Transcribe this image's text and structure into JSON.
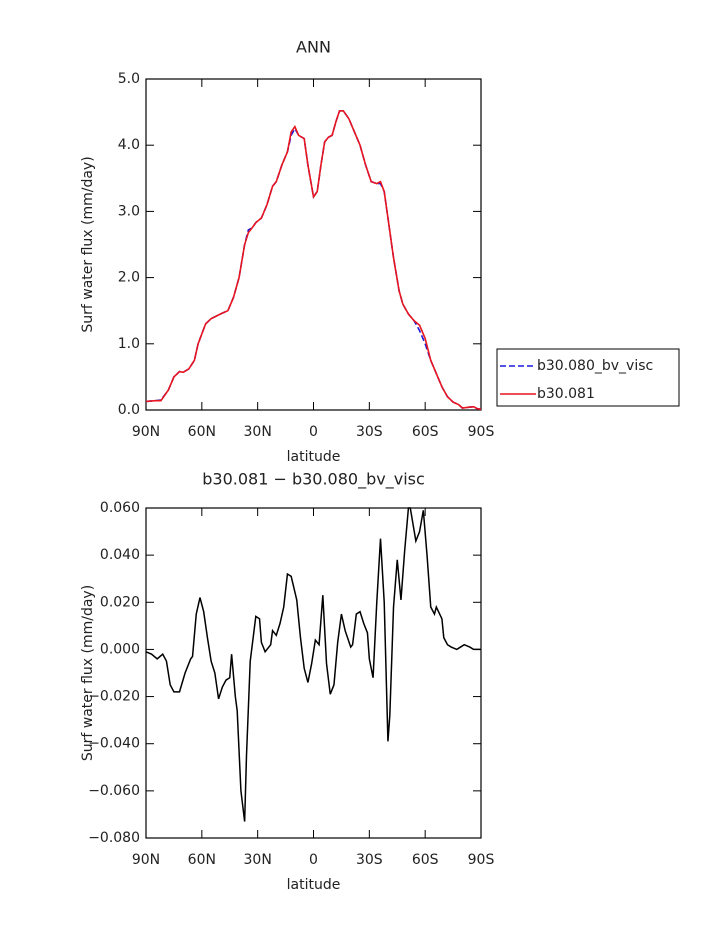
{
  "chart_data": [
    {
      "type": "line",
      "title": "ANN",
      "xlabel": "latitude",
      "ylabel": "Surf water flux (mm/day)",
      "x": [
        90,
        85,
        82,
        78,
        75,
        72,
        70,
        67,
        64,
        62,
        58,
        55,
        50,
        46,
        43,
        40,
        37,
        35,
        33,
        31,
        28,
        25,
        22,
        20,
        17,
        14,
        12,
        10,
        8,
        5,
        3,
        0,
        -2,
        -4,
        -6,
        -8,
        -10,
        -12,
        -14,
        -16,
        -19,
        -22,
        -25,
        -28,
        -31,
        -34,
        -36,
        -38,
        -40,
        -43,
        -46,
        -48,
        -51,
        -54,
        -57,
        -60,
        -63,
        -66,
        -69,
        -72,
        -75,
        -78,
        -80,
        -83,
        -86,
        -88,
        -90
      ],
      "series": [
        {
          "name": "b30.080_bv_visc",
          "color": "#1a1adb",
          "dash": true,
          "values": [
            0.13,
            0.14,
            0.15,
            0.3,
            0.5,
            0.58,
            0.57,
            0.62,
            0.75,
            1.0,
            1.3,
            1.38,
            1.45,
            1.5,
            1.7,
            2.0,
            2.5,
            2.72,
            2.75,
            2.83,
            2.9,
            3.1,
            3.38,
            3.45,
            3.7,
            3.9,
            4.15,
            4.25,
            4.15,
            4.1,
            3.7,
            3.22,
            3.3,
            3.7,
            4.05,
            4.12,
            4.15,
            4.35,
            4.52,
            4.52,
            4.4,
            4.2,
            4.0,
            3.7,
            3.45,
            3.42,
            3.42,
            3.3,
            2.9,
            2.3,
            1.8,
            1.6,
            1.45,
            1.35,
            1.2,
            1.0,
            0.75,
            0.55,
            0.35,
            0.2,
            0.12,
            0.08,
            0.03,
            0.04,
            0.05,
            0.02,
            0.01
          ]
        },
        {
          "name": "b30.081",
          "color": "#e8141e",
          "dash": false,
          "values": [
            0.13,
            0.14,
            0.14,
            0.3,
            0.5,
            0.58,
            0.57,
            0.62,
            0.75,
            1.0,
            1.3,
            1.38,
            1.45,
            1.5,
            1.7,
            2.0,
            2.5,
            2.68,
            2.75,
            2.83,
            2.9,
            3.1,
            3.38,
            3.45,
            3.7,
            3.9,
            4.2,
            4.28,
            4.15,
            4.1,
            3.7,
            3.22,
            3.3,
            3.7,
            4.05,
            4.12,
            4.15,
            4.35,
            4.52,
            4.52,
            4.4,
            4.2,
            4.0,
            3.7,
            3.45,
            3.42,
            3.45,
            3.3,
            2.9,
            2.3,
            1.8,
            1.6,
            1.45,
            1.35,
            1.28,
            1.08,
            0.75,
            0.55,
            0.35,
            0.2,
            0.12,
            0.08,
            0.03,
            0.04,
            0.05,
            0.02,
            0.01
          ]
        }
      ],
      "xlim": [
        90,
        -90
      ],
      "xticks": [
        {
          "value": 90,
          "label": "90N"
        },
        {
          "value": 60,
          "label": "60N"
        },
        {
          "value": 30,
          "label": "30N"
        },
        0,
        {
          "value": -30,
          "label": "30S"
        },
        {
          "value": -60,
          "label": "60S"
        },
        {
          "value": -90,
          "label": "90S"
        }
      ],
      "ylim": [
        0,
        5
      ],
      "yticks": [
        {
          "value": 0,
          "label": "0.0"
        },
        {
          "value": 1,
          "label": "1.0"
        },
        {
          "value": 2,
          "label": "2.0"
        },
        {
          "value": 3,
          "label": "3.0"
        },
        {
          "value": 4,
          "label": "4.0"
        },
        {
          "value": 5,
          "label": "5.0"
        }
      ],
      "legend": "right"
    },
    {
      "type": "line",
      "title": "b30.081 − b30.080_bv_visc",
      "xlabel": "latitude",
      "ylabel": "Surf water flux (mm/day)",
      "color": "#000000",
      "x": [
        90,
        87,
        84,
        81,
        79,
        77,
        75,
        72,
        69,
        66,
        65,
        63,
        61,
        59,
        57,
        55,
        53,
        51,
        49,
        47,
        45,
        44,
        42,
        41,
        39,
        37,
        36,
        34,
        31,
        29,
        28,
        26,
        23,
        22,
        20,
        18,
        16,
        14,
        12,
        9,
        7,
        5,
        3,
        1,
        -1,
        -3,
        -5,
        -7,
        -9,
        -11,
        -13,
        -15,
        -17,
        -20,
        -21,
        -23,
        -25,
        -27,
        -29,
        -30,
        -32,
        -34,
        -36,
        -38,
        -40,
        -41,
        -43,
        -45,
        -47,
        -49,
        -51,
        -52,
        -55,
        -57,
        -59,
        -61,
        -63,
        -65,
        -66,
        -69,
        -70,
        -72,
        -74,
        -77,
        -79,
        -81,
        -84,
        -86,
        -90
      ],
      "values": [
        -0.001,
        -0.002,
        -0.004,
        -0.002,
        -0.005,
        -0.015,
        -0.018,
        -0.018,
        -0.01,
        -0.004,
        -0.003,
        0.015,
        0.022,
        0.016,
        0.005,
        -0.005,
        -0.01,
        -0.021,
        -0.016,
        -0.013,
        -0.012,
        -0.002,
        -0.02,
        -0.026,
        -0.06,
        -0.073,
        -0.045,
        -0.005,
        0.014,
        0.013,
        0.003,
        -0.001,
        0.002,
        0.008,
        0.006,
        0.011,
        0.018,
        0.032,
        0.031,
        0.021,
        0.005,
        -0.008,
        -0.014,
        -0.006,
        0.004,
        0.002,
        0.023,
        -0.006,
        -0.019,
        -0.015,
        0.003,
        0.015,
        0.008,
        0.001,
        0.002,
        0.015,
        0.016,
        0.011,
        0.007,
        -0.004,
        -0.012,
        0.02,
        0.047,
        0.02,
        -0.039,
        -0.028,
        0.018,
        0.038,
        0.021,
        0.042,
        0.06,
        0.06,
        0.046,
        0.05,
        0.059,
        0.04,
        0.018,
        0.015,
        0.018,
        0.013,
        0.005,
        0.002,
        0.001,
        0.0,
        0.001,
        0.002,
        0.001,
        0.0,
        0.0
      ],
      "xlim": [
        90,
        -90
      ],
      "xticks": [
        {
          "value": 90,
          "label": "90N"
        },
        {
          "value": 60,
          "label": "60N"
        },
        {
          "value": 30,
          "label": "30N"
        },
        0,
        {
          "value": -30,
          "label": "30S"
        },
        {
          "value": -60,
          "label": "60S"
        },
        {
          "value": -90,
          "label": "90S"
        }
      ],
      "ylim": [
        -0.08,
        0.06
      ],
      "yticks": [
        {
          "value": -0.08,
          "label": "−0.080"
        },
        {
          "value": -0.06,
          "label": "−0.060"
        },
        {
          "value": -0.04,
          "label": "−0.040"
        },
        {
          "value": -0.02,
          "label": "−0.020"
        },
        {
          "value": 0,
          "label": "0.000"
        },
        {
          "value": 0.02,
          "label": "0.020"
        },
        {
          "value": 0.04,
          "label": "0.040"
        },
        {
          "value": 0.06,
          "label": "0.060"
        }
      ]
    }
  ]
}
